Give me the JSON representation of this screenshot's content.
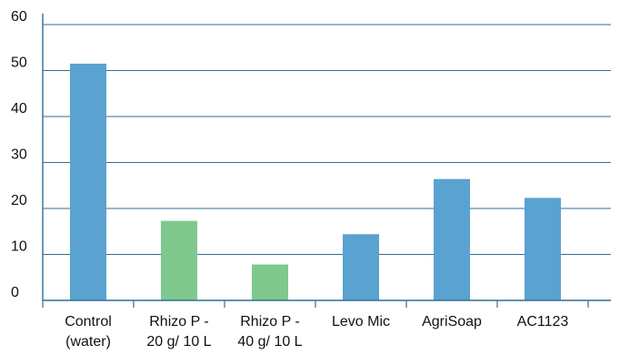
{
  "chart_data": {
    "type": "bar",
    "title": "",
    "xlabel": "",
    "ylabel": "",
    "ylim": [
      0,
      60
    ],
    "yticks": [
      0,
      10,
      20,
      30,
      40,
      50,
      60
    ],
    "grid": true,
    "categories": [
      [
        "Control",
        "(water)"
      ],
      [
        "Rhizo P -",
        "20 g/ 10 L"
      ],
      [
        "Rhizo P -",
        "40 g/ 10 L"
      ],
      [
        "Levo Mic"
      ],
      [
        "AgriSoap"
      ],
      [
        "AC1123"
      ]
    ],
    "values": [
      51.5,
      17.3,
      7.8,
      14.4,
      26.4,
      22.3
    ],
    "bar_colors": [
      "#5aa2d0",
      "#7fc98f",
      "#7fc98f",
      "#5aa2d0",
      "#5aa2d0",
      "#5aa2d0"
    ],
    "colors": {
      "gridline": "#2f6f98",
      "axis": "#2f6f98",
      "text": "#111111"
    }
  }
}
